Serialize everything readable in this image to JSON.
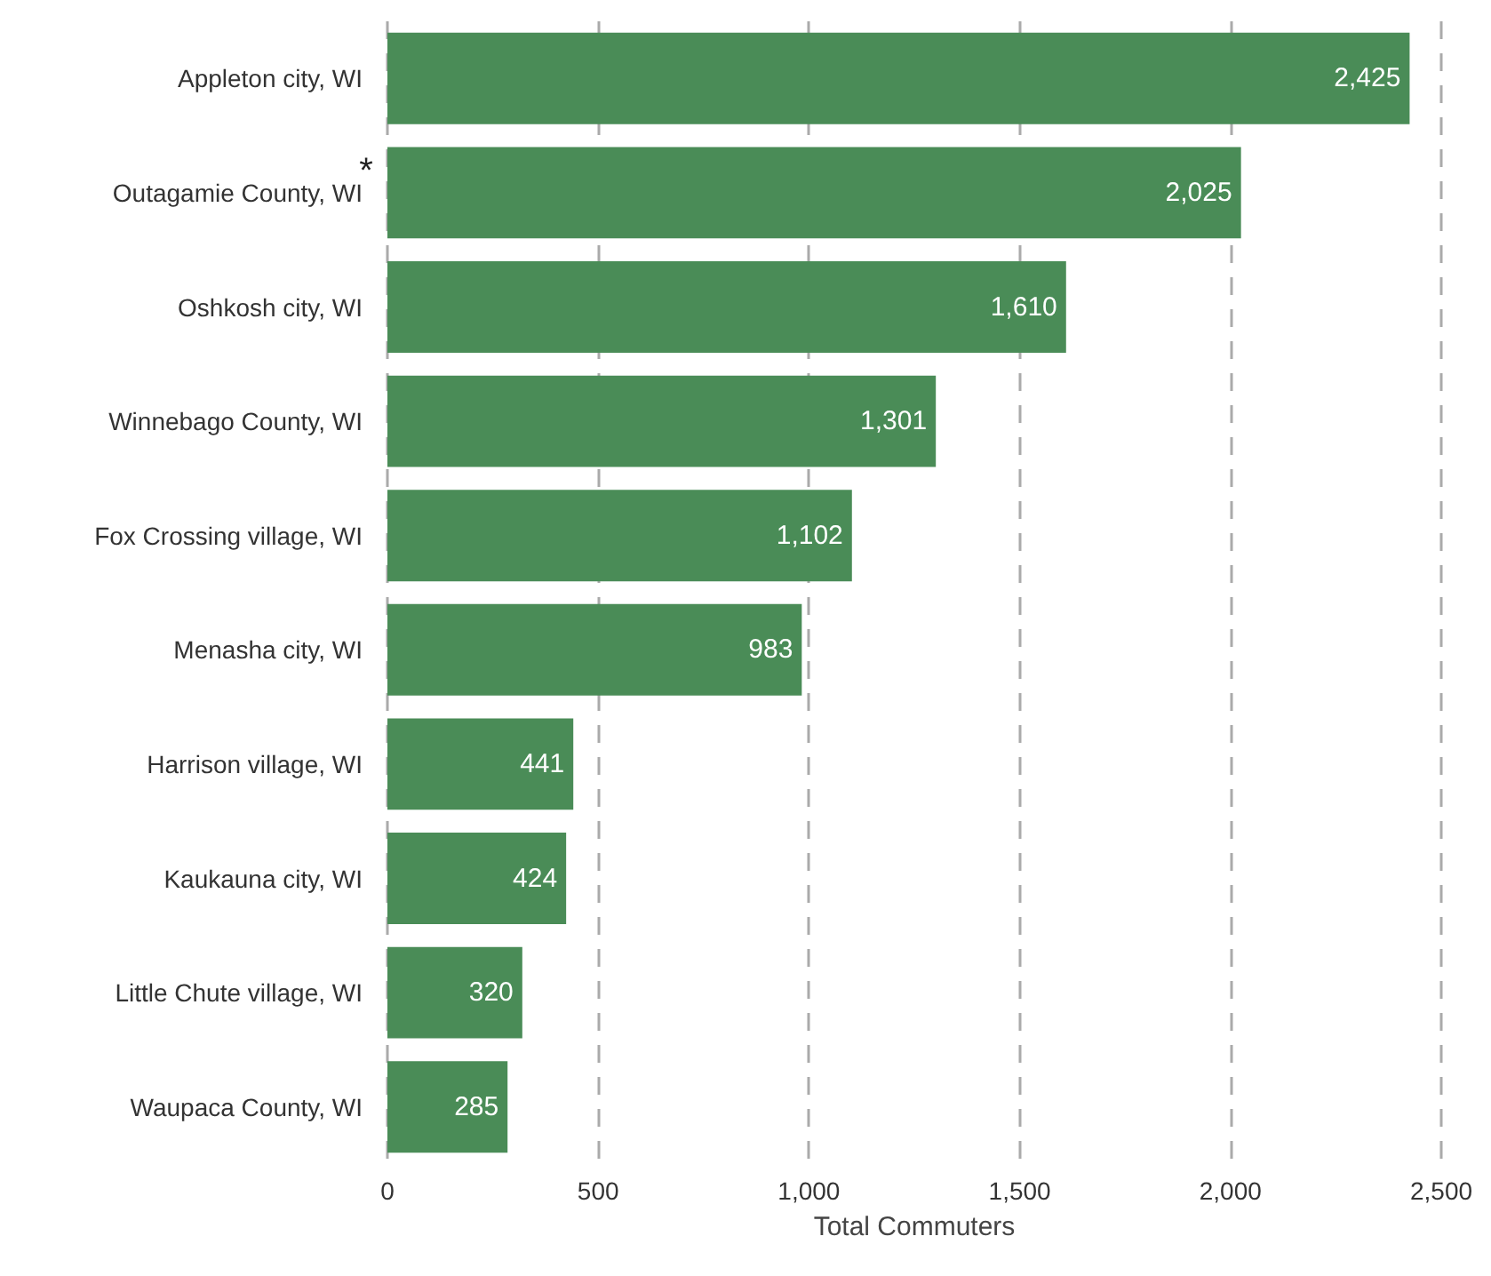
{
  "chart_data": {
    "type": "bar",
    "orientation": "horizontal",
    "xlabel": "Total Commuters",
    "categories": [
      "Appleton city, WI",
      "Outagamie County, WI",
      "Oshkosh city, WI",
      "Winnebago County, WI",
      "Fox Crossing village, WI",
      "Menasha city, WI",
      "Harrison village, WI",
      "Kaukauna city, WI",
      "Little Chute village, WI",
      "Waupaca County, WI"
    ],
    "values": [
      2425,
      2025,
      1610,
      1301,
      1102,
      983,
      441,
      424,
      320,
      285
    ],
    "value_labels": [
      "2,425",
      "2,025",
      "1,610",
      "1,301",
      "1,102",
      "983",
      "441",
      "424",
      "320",
      "285"
    ],
    "color": "#4a8c57",
    "xlim": [
      0,
      2500
    ],
    "xticks": [
      0,
      500,
      {
        "value": 1000,
        "label": "1,000"
      },
      {
        "value": 1500,
        "label": "1,500"
      },
      {
        "value": 2000,
        "label": "2,000"
      },
      {
        "value": 2500,
        "label": "2,500"
      }
    ],
    "grid": "x",
    "annotations": [
      "*"
    ]
  }
}
